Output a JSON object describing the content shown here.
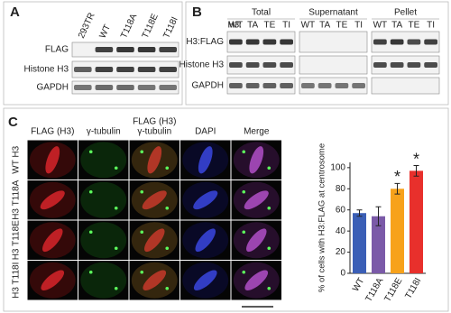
{
  "panel_a": {
    "label": "A",
    "lanes": [
      "293TR",
      "WT",
      "T118A",
      "T118E",
      "T118I"
    ],
    "rows": [
      "FLAG",
      "Histone H3",
      "GAPDH"
    ]
  },
  "panel_b": {
    "label": "B",
    "lane_prefix": "H3:",
    "groups": [
      {
        "title": "Total",
        "lanes": [
          "WT",
          "TA",
          "TE",
          "TI"
        ]
      },
      {
        "title": "Supernatant",
        "lanes": [
          "WT",
          "TA",
          "TE",
          "TI"
        ]
      },
      {
        "title": "Pellet",
        "lanes": [
          "WT",
          "TA",
          "TE",
          "TI"
        ]
      }
    ],
    "rows": [
      "H3:FLAG",
      "Histone H3",
      "GAPDH"
    ]
  },
  "panel_c": {
    "label": "C",
    "columns": [
      {
        "lines": [
          {
            "text": "FLAG (H3)",
            "color": "#e8302c"
          }
        ]
      },
      {
        "lines": [
          {
            "text": "γ-tubulin",
            "color": "#2e9a3c"
          }
        ]
      },
      {
        "lines": [
          {
            "text": "FLAG (H3)",
            "color": "#e8302c"
          },
          {
            "text": "γ-tubulin",
            "color": "#2e9a3c"
          }
        ]
      },
      {
        "lines": [
          {
            "text": "DAPI",
            "color": "#2f4fd0"
          }
        ]
      },
      {
        "lines": [
          {
            "text": "Merge",
            "color": "#222222"
          }
        ]
      }
    ],
    "rows": [
      "WT H3",
      "H3 T118A",
      "H3 T118E",
      "H3 T118I"
    ]
  },
  "chart_data": {
    "type": "bar",
    "ylabel": "% of cells with H3:FLAG at centrosome",
    "categories": [
      "WT",
      "T118A",
      "T118E",
      "T118I"
    ],
    "values": [
      57,
      54,
      80,
      97
    ],
    "errors": [
      3,
      9,
      5,
      5
    ],
    "colors": [
      "#3b5fb6",
      "#7b5aa8",
      "#f7a21b",
      "#e8302c"
    ],
    "ylim": [
      0,
      105
    ],
    "yticks": [
      0,
      20,
      40,
      60,
      80,
      100
    ],
    "annotations": [
      {
        "text": "*",
        "x": "T118E"
      },
      {
        "text": "*",
        "x": "T118I"
      }
    ]
  }
}
